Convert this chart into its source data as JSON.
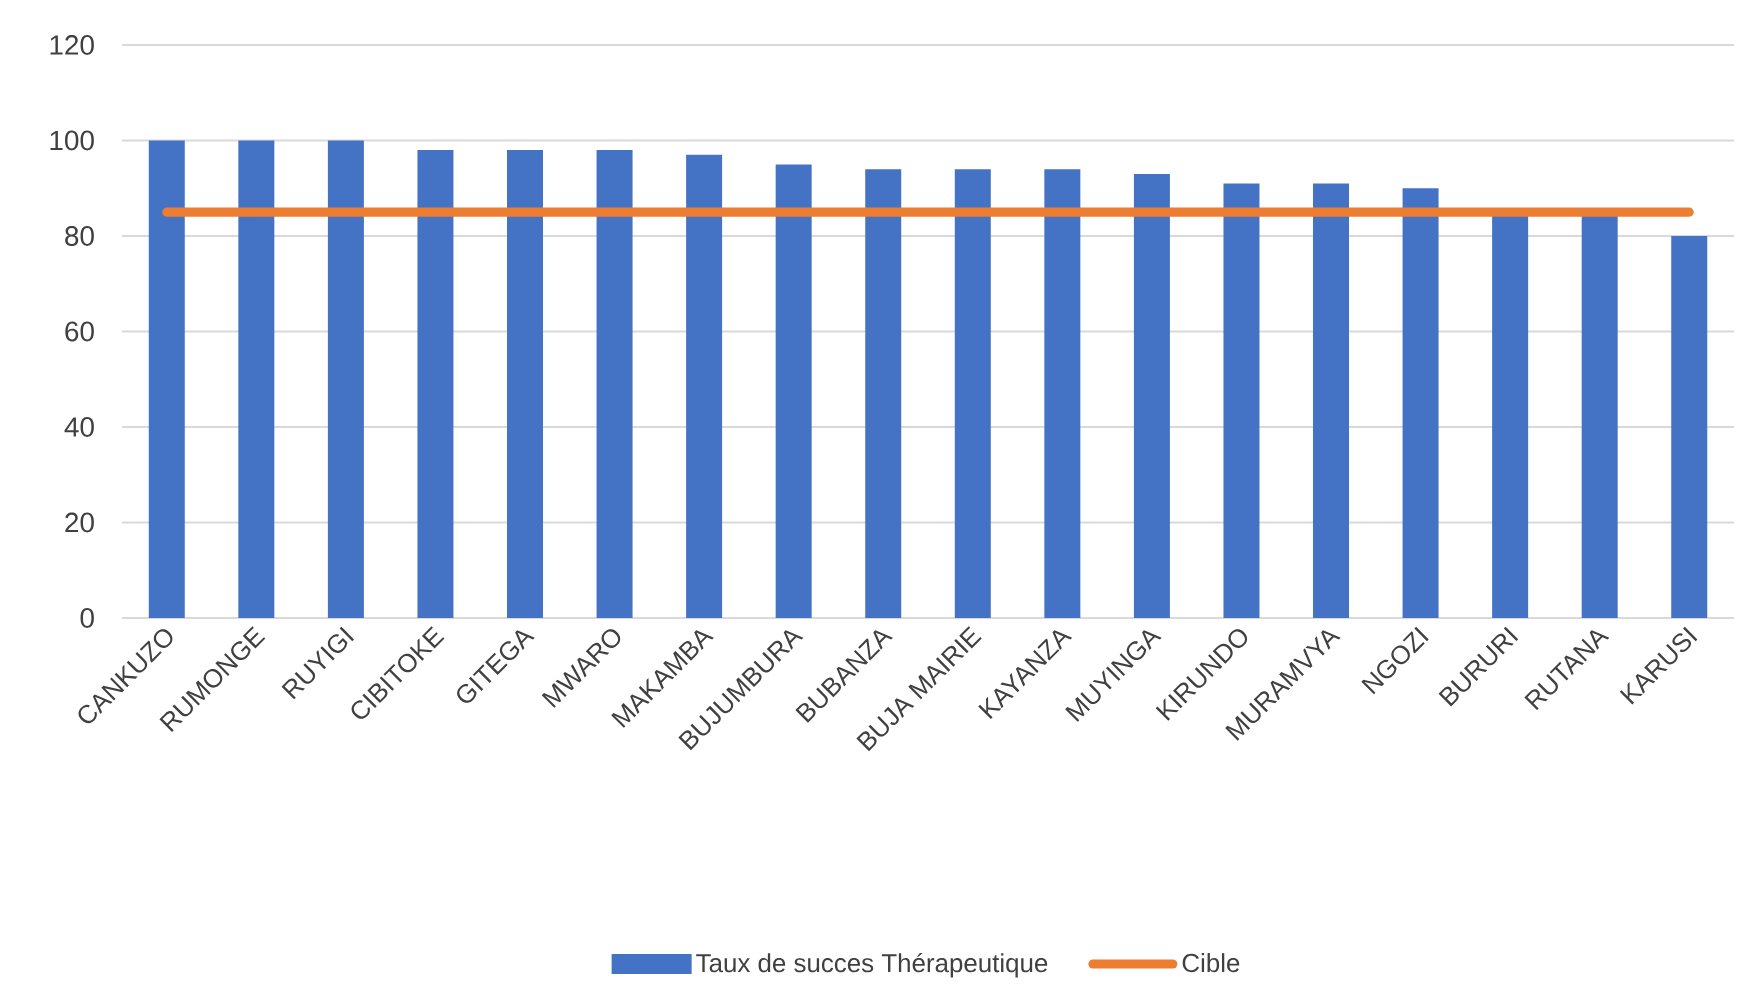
{
  "chart_data": {
    "type": "bar",
    "categories": [
      "CANKUZO",
      "RUMONGE",
      "RUYIGI",
      "CIBITOKE",
      "GITEGA",
      "MWARO",
      "MAKAMBA",
      "BUJUMBURA",
      "BUBANZA",
      "BUJA MAIRIE",
      "KAYANZA",
      "MUYINGA",
      "KIRUNDO",
      "MURAMVYA",
      "NGOZI",
      "BURURI",
      "RUTANA",
      "KARUSI"
    ],
    "series": [
      {
        "name": "Taux de succes Thérapeutique",
        "color": "#4472c4",
        "values": [
          100,
          100,
          100,
          98,
          98,
          98,
          97,
          95,
          94,
          94,
          94,
          93,
          91,
          91,
          90,
          85,
          85,
          80
        ]
      },
      {
        "name": "Cible",
        "type": "line",
        "color": "#ed7d31",
        "values": [
          85,
          85,
          85,
          85,
          85,
          85,
          85,
          85,
          85,
          85,
          85,
          85,
          85,
          85,
          85,
          85,
          85,
          85
        ]
      }
    ],
    "ylim": [
      0,
      120
    ],
    "yticks": [
      0,
      20,
      40,
      60,
      80,
      100,
      120
    ],
    "grid": "y",
    "legend": "bottom"
  }
}
